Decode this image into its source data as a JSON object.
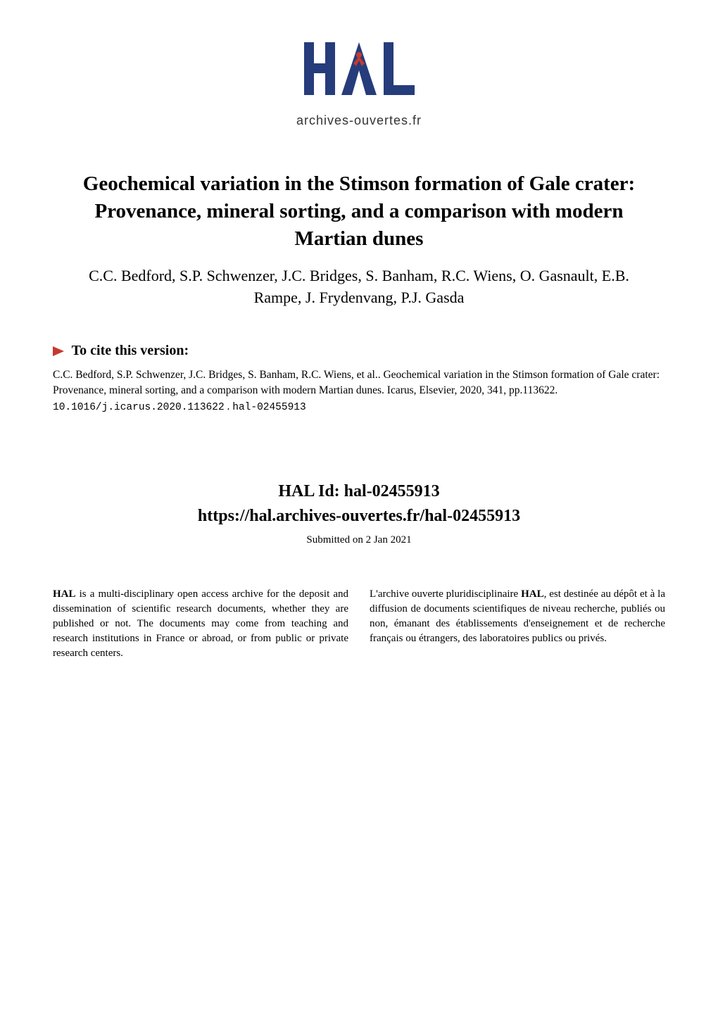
{
  "logo": {
    "text": "archives-ouvertes.fr",
    "primary_color": "#263c7b",
    "accent_color": "#c6392f",
    "text_color": "#333333"
  },
  "paper": {
    "title": "Geochemical variation in the Stimson formation of Gale crater: Provenance, mineral sorting, and a comparison with modern Martian dunes",
    "authors": "C.C. Bedford, S.P. Schwenzer, J.C. Bridges, S. Banham, R.C. Wiens, O. Gasnault, E.B. Rampe, J. Frydenvang, P.J. Gasda"
  },
  "cite": {
    "heading": "To cite this version:",
    "text_prefix": "C.C. Bedford, S.P. Schwenzer, J.C. Bridges, S. Banham, R.C. Wiens, et al.. Geochemical variation in the Stimson formation of Gale crater: Provenance, mineral sorting, and a comparison with modern Martian dunes. Icarus, Elsevier, 2020, 341, pp.113622. ",
    "doi": "10.1016/j.icarus.2020.113622",
    "separator": " . ",
    "hal_ref": "hal-02455913"
  },
  "hal": {
    "id_label": "HAL Id: hal-02455913",
    "url": "https://hal.archives-ouvertes.fr/hal-02455913",
    "submitted": "Submitted on 2 Jan 2021"
  },
  "descriptions": {
    "left": "HAL is a multi-disciplinary open access archive for the deposit and dissemination of scientific research documents, whether they are published or not. The documents may come from teaching and research institutions in France or abroad, or from public or private research centers.",
    "right": "L'archive ouverte pluridisciplinaire HAL, est destinée au dépôt et à la diffusion de documents scientifiques de niveau recherche, publiés ou non, émanant des établissements d'enseignement et de recherche français ou étrangers, des laboratoires publics ou privés.",
    "bold_prefix_left": "HAL",
    "bold_prefix_right": "HAL"
  },
  "marker_color": "#c6392f"
}
